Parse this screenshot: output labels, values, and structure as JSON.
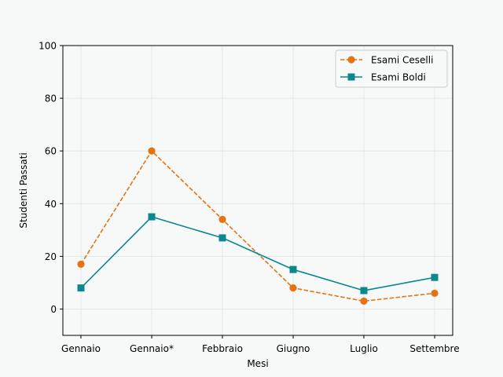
{
  "chart_data": {
    "type": "line",
    "title": "",
    "xlabel": "Mesi",
    "ylabel": "Studenti Passati",
    "categories": [
      "Gennaio",
      "Gennaio*",
      "Febbraio",
      "Giugno",
      "Luglio",
      "Settembre"
    ],
    "ylim": [
      -10,
      100
    ],
    "yticks": [
      0,
      20,
      40,
      60,
      80,
      100
    ],
    "grid": true,
    "legend_position": "top-right",
    "series": [
      {
        "name": "Esami Ceselli",
        "values": [
          17,
          60,
          34,
          8,
          3,
          6
        ],
        "color": "#e37411",
        "style": "dashed",
        "marker": "circle"
      },
      {
        "name": "Esami Boldi",
        "values": [
          8,
          35,
          27,
          15,
          7,
          12
        ],
        "color": "#0a878f",
        "style": "solid",
        "marker": "square"
      }
    ]
  }
}
